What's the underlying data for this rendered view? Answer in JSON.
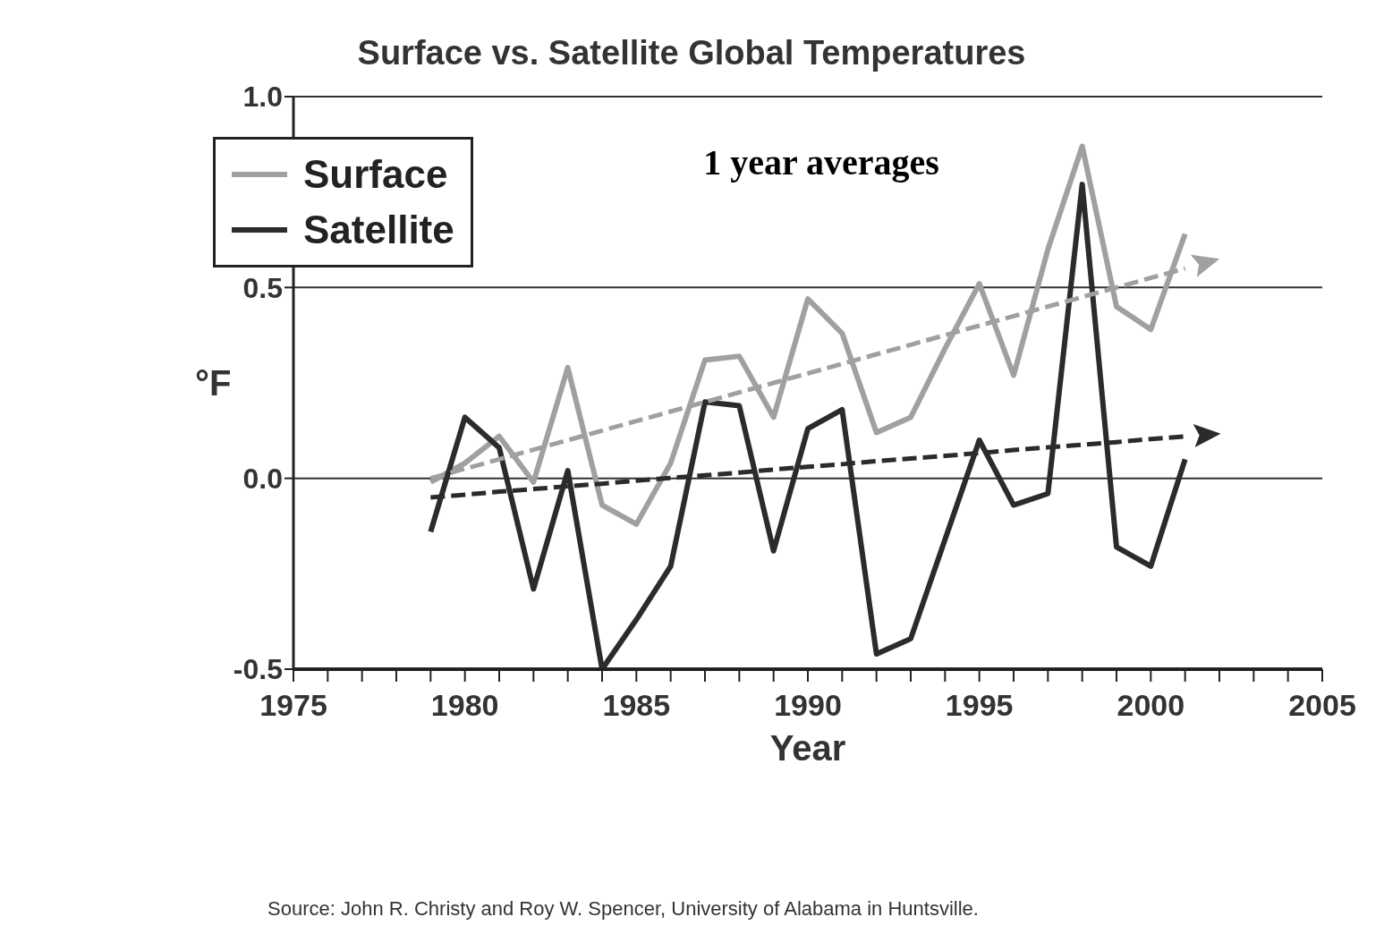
{
  "chart_data": {
    "type": "line",
    "title": "Surface vs. Satellite Global Temperatures",
    "xlabel": "Year",
    "ylabel": "°F",
    "annotations": [
      "1 year averages",
      "Source: John R. Christy and Roy W. Spencer, University of Alabama in Huntsville."
    ],
    "x": [
      1979,
      1980,
      1981,
      1982,
      1983,
      1984,
      1985,
      1986,
      1987,
      1988,
      1989,
      1990,
      1991,
      1992,
      1993,
      1994,
      1995,
      1996,
      1997,
      1998,
      1999,
      2000,
      2001
    ],
    "series": [
      {
        "name": "Surface",
        "color": "#a0a0a0",
        "values": [
          -0.01,
          0.04,
          0.11,
          -0.01,
          0.29,
          -0.07,
          -0.12,
          0.04,
          0.31,
          0.32,
          0.16,
          0.47,
          0.38,
          0.12,
          0.16,
          0.34,
          0.51,
          0.27,
          0.6,
          0.87,
          0.45,
          0.39,
          0.64
        ]
      },
      {
        "name": "Satellite",
        "color": "#2b2b2b",
        "values": [
          -0.14,
          0.16,
          0.08,
          -0.29,
          0.02,
          -0.5,
          -0.37,
          -0.23,
          0.2,
          0.19,
          -0.19,
          0.13,
          0.18,
          -0.46,
          -0.42,
          -0.16,
          0.1,
          -0.07,
          -0.04,
          0.77,
          -0.18,
          -0.23,
          0.05
        ]
      },
      {
        "type": "line",
        "color": "#a0a0a0",
        "line_style": "dashed",
        "values": [
          0,
          0.025,
          0.05,
          0.075,
          0.1,
          0.125,
          0.15,
          0.175,
          0.2,
          0.225,
          0.25,
          0.275,
          0.3,
          0.325,
          0.35,
          0.375,
          0.4,
          0.425,
          0.45,
          0.475,
          0.5,
          0.525,
          0.55
        ]
      },
      {
        "type": "line",
        "color": "#2b2b2b",
        "line_style": "dashed",
        "values": [
          -0.05,
          -0.043,
          -0.035,
          -0.028,
          -0.021,
          -0.014,
          -0.006,
          0.001,
          0.008,
          0.015,
          0.023,
          0.03,
          0.037,
          0.045,
          0.052,
          0.059,
          0.066,
          0.074,
          0.081,
          0.088,
          0.095,
          0.103,
          0.11
        ]
      }
    ],
    "xlim": [
      1975,
      2005
    ],
    "xticks": [
      1975,
      {
        "value": 1976,
        "label": null
      },
      {
        "value": 1977,
        "label": null
      },
      {
        "value": 1978,
        "label": null
      },
      {
        "value": 1979,
        "label": null
      },
      1980,
      {
        "value": 1981,
        "label": null
      },
      {
        "value": 1982,
        "label": null
      },
      {
        "value": 1983,
        "label": null
      },
      {
        "value": 1984,
        "label": null
      },
      1985,
      {
        "value": 1986,
        "label": null
      },
      {
        "value": 1987,
        "label": null
      },
      {
        "value": 1988,
        "label": null
      },
      {
        "value": 1989,
        "label": null
      },
      1990,
      {
        "value": 1991,
        "label": null
      },
      {
        "value": 1992,
        "label": null
      },
      {
        "value": 1993,
        "label": null
      },
      {
        "value": 1994,
        "label": null
      },
      1995,
      {
        "value": 1996,
        "label": null
      },
      {
        "value": 1997,
        "label": null
      },
      {
        "value": 1998,
        "label": null
      },
      {
        "value": 1999,
        "label": null
      },
      2000,
      {
        "value": 2001,
        "label": null
      },
      {
        "value": 2002,
        "label": null
      },
      {
        "value": 2003,
        "label": null
      },
      {
        "value": 2004,
        "label": null
      },
      2005
    ],
    "ylim": [
      -0.5,
      1.0
    ],
    "yticks": [
      {
        "value": -0.5,
        "label": "-0.5"
      },
      {
        "value": 0,
        "label": "0.0"
      },
      {
        "value": 0.5,
        "label": "0.5"
      },
      {
        "value": 1,
        "label": "1.0"
      }
    ],
    "grid": "y",
    "legend": "top left",
    "marker": "none",
    "line_style": "solid"
  }
}
